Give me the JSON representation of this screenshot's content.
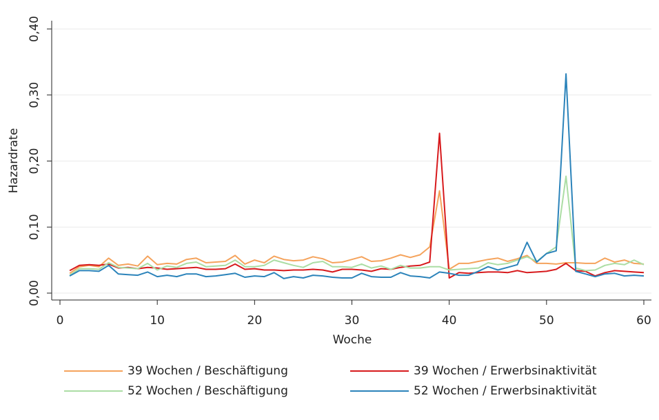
{
  "chart_data": {
    "type": "line",
    "ylabel": "Hazardrate",
    "xlabel": "Woche",
    "x": [
      1,
      2,
      3,
      4,
      5,
      6,
      7,
      8,
      9,
      10,
      11,
      12,
      13,
      14,
      15,
      16,
      17,
      18,
      19,
      20,
      21,
      22,
      23,
      24,
      25,
      26,
      27,
      28,
      29,
      30,
      31,
      32,
      33,
      34,
      35,
      36,
      37,
      38,
      39,
      40,
      41,
      42,
      43,
      44,
      45,
      46,
      47,
      48,
      49,
      50,
      51,
      52,
      53,
      54,
      55,
      56,
      57,
      58,
      59,
      60
    ],
    "xlim": [
      0,
      60
    ],
    "xticks": [
      0,
      10,
      20,
      30,
      40,
      50,
      60
    ],
    "ylim": [
      0,
      0.4
    ],
    "yticks": [
      {
        "value": 0,
        "label": "0,00"
      },
      {
        "value": 0.1,
        "label": "0,10"
      },
      {
        "value": 0.2,
        "label": "0,20"
      },
      {
        "value": 0.3,
        "label": "0,30"
      },
      {
        "value": 0.4,
        "label": "0,40"
      }
    ],
    "grid": true,
    "series": [
      {
        "name": "39 Wochen / Beschäftigung",
        "color": "#f5a35c",
        "values": [
          0.03,
          0.04,
          0.042,
          0.04,
          0.053,
          0.042,
          0.044,
          0.041,
          0.056,
          0.043,
          0.045,
          0.044,
          0.051,
          0.053,
          0.046,
          0.047,
          0.048,
          0.057,
          0.044,
          0.05,
          0.046,
          0.056,
          0.051,
          0.049,
          0.05,
          0.055,
          0.052,
          0.046,
          0.047,
          0.051,
          0.055,
          0.048,
          0.049,
          0.053,
          0.058,
          0.054,
          0.058,
          0.07,
          0.155,
          0.036,
          0.045,
          0.045,
          0.048,
          0.051,
          0.053,
          0.048,
          0.052,
          0.057,
          0.045,
          0.045,
          0.044,
          0.046,
          0.046,
          0.045,
          0.045,
          0.053,
          0.047,
          0.05,
          0.045,
          0.044
        ]
      },
      {
        "name": "39 Wochen / Erwerbsinaktivität",
        "color": "#d7191c",
        "values": [
          0.034,
          0.042,
          0.043,
          0.042,
          0.044,
          0.038,
          0.039,
          0.037,
          0.039,
          0.038,
          0.036,
          0.037,
          0.038,
          0.039,
          0.036,
          0.036,
          0.037,
          0.044,
          0.036,
          0.037,
          0.035,
          0.035,
          0.034,
          0.035,
          0.035,
          0.036,
          0.035,
          0.032,
          0.036,
          0.036,
          0.035,
          0.033,
          0.037,
          0.036,
          0.039,
          0.041,
          0.042,
          0.047,
          0.242,
          0.023,
          0.031,
          0.03,
          0.031,
          0.032,
          0.032,
          0.031,
          0.034,
          0.031,
          0.032,
          0.033,
          0.036,
          0.045,
          0.034,
          0.033,
          0.026,
          0.031,
          0.034,
          0.033,
          0.032,
          0.031
        ]
      },
      {
        "name": "52 Wochen / Beschäftigung",
        "color": "#abdda4",
        "values": [
          0.027,
          0.037,
          0.037,
          0.036,
          0.046,
          0.039,
          0.038,
          0.037,
          0.045,
          0.035,
          0.041,
          0.039,
          0.045,
          0.047,
          0.04,
          0.041,
          0.042,
          0.05,
          0.04,
          0.04,
          0.042,
          0.05,
          0.046,
          0.042,
          0.039,
          0.046,
          0.048,
          0.04,
          0.04,
          0.039,
          0.044,
          0.038,
          0.041,
          0.036,
          0.042,
          0.038,
          0.038,
          0.04,
          0.04,
          0.035,
          0.036,
          0.037,
          0.038,
          0.046,
          0.043,
          0.045,
          0.05,
          0.055,
          0.048,
          0.06,
          0.07,
          0.177,
          0.038,
          0.034,
          0.035,
          0.042,
          0.045,
          0.043,
          0.05,
          0.043
        ]
      },
      {
        "name": "52 Wochen / Erwerbsinaktivität",
        "color": "#2b83ba",
        "values": [
          0.026,
          0.034,
          0.034,
          0.033,
          0.042,
          0.029,
          0.028,
          0.027,
          0.032,
          0.025,
          0.027,
          0.025,
          0.029,
          0.029,
          0.025,
          0.026,
          0.028,
          0.03,
          0.024,
          0.026,
          0.025,
          0.031,
          0.022,
          0.025,
          0.023,
          0.027,
          0.026,
          0.024,
          0.023,
          0.023,
          0.03,
          0.025,
          0.024,
          0.024,
          0.031,
          0.026,
          0.025,
          0.023,
          0.032,
          0.03,
          0.027,
          0.027,
          0.033,
          0.04,
          0.035,
          0.039,
          0.043,
          0.077,
          0.047,
          0.06,
          0.064,
          0.332,
          0.033,
          0.029,
          0.025,
          0.029,
          0.03,
          0.026,
          0.027,
          0.026
        ]
      }
    ]
  }
}
